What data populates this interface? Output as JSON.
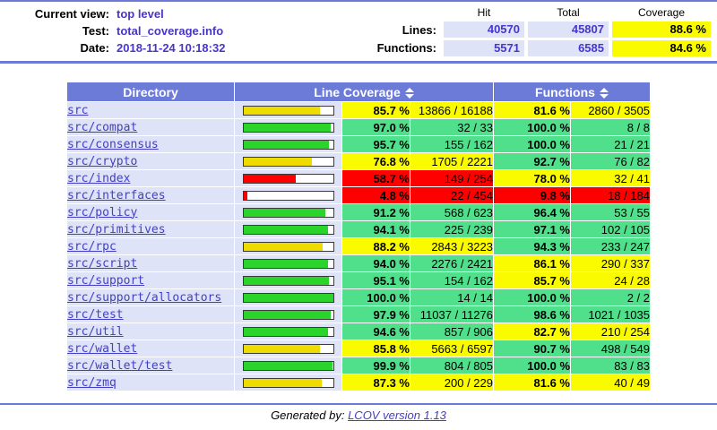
{
  "colors": {
    "accent_blue": "#6C7BD8",
    "cell_light_blue": "#DEE3F8",
    "high_green": "#50DF8A",
    "medium_yellow": "#FBFB00",
    "low_red": "#FF0000",
    "bar_green": "#2BD42B",
    "bar_yellow": "#EEDC00",
    "value_purple": "#4936C8",
    "link_blue": "#4340C4"
  },
  "header": {
    "fields": [
      {
        "label": "Current view:",
        "value": "top level"
      },
      {
        "label": "Test:",
        "value": "total_coverage.info"
      },
      {
        "label": "Date:",
        "value": "2018-11-24 10:18:32"
      }
    ],
    "summary": {
      "columns": [
        "Hit",
        "Total",
        "Coverage"
      ],
      "rows": [
        {
          "label": "Lines:",
          "hit": "40570",
          "total": "45807",
          "coverage": "88.6 %",
          "level": "med"
        },
        {
          "label": "Functions:",
          "hit": "5571",
          "total": "6585",
          "coverage": "84.6 %",
          "level": "med"
        }
      ]
    }
  },
  "table": {
    "header": {
      "directory": "Directory",
      "line_coverage": "Line Coverage",
      "functions": "Functions",
      "sort_icon": "sort-updown-icon"
    },
    "rows": [
      {
        "dir": "src",
        "line_pct": "85.7 %",
        "line_val": 85.7,
        "line_level": "med",
        "line_frac": "13866 / 16188",
        "func_pct": "81.6 %",
        "func_level": "med",
        "func_frac": "2860 / 3505"
      },
      {
        "dir": "src/compat",
        "line_pct": "97.0 %",
        "line_val": 97.0,
        "line_level": "hi",
        "line_frac": "32 / 33",
        "func_pct": "100.0 %",
        "func_level": "hi",
        "func_frac": "8 / 8"
      },
      {
        "dir": "src/consensus",
        "line_pct": "95.7 %",
        "line_val": 95.7,
        "line_level": "hi",
        "line_frac": "155 / 162",
        "func_pct": "100.0 %",
        "func_level": "hi",
        "func_frac": "21 / 21"
      },
      {
        "dir": "src/crypto",
        "line_pct": "76.8 %",
        "line_val": 76.8,
        "line_level": "med",
        "line_frac": "1705 / 2221",
        "func_pct": "92.7 %",
        "func_level": "hi",
        "func_frac": "76 / 82"
      },
      {
        "dir": "src/index",
        "line_pct": "58.7 %",
        "line_val": 58.7,
        "line_level": "lo",
        "line_frac": "149 / 254",
        "func_pct": "78.0 %",
        "func_level": "med",
        "func_frac": "32 / 41"
      },
      {
        "dir": "src/interfaces",
        "line_pct": "4.8 %",
        "line_val": 4.8,
        "line_level": "lo",
        "line_frac": "22 / 454",
        "func_pct": "9.8 %",
        "func_level": "lo",
        "func_frac": "18 / 184"
      },
      {
        "dir": "src/policy",
        "line_pct": "91.2 %",
        "line_val": 91.2,
        "line_level": "hi",
        "line_frac": "568 / 623",
        "func_pct": "96.4 %",
        "func_level": "hi",
        "func_frac": "53 / 55"
      },
      {
        "dir": "src/primitives",
        "line_pct": "94.1 %",
        "line_val": 94.1,
        "line_level": "hi",
        "line_frac": "225 / 239",
        "func_pct": "97.1 %",
        "func_level": "hi",
        "func_frac": "102 / 105"
      },
      {
        "dir": "src/rpc",
        "line_pct": "88.2 %",
        "line_val": 88.2,
        "line_level": "med",
        "line_frac": "2843 / 3223",
        "func_pct": "94.3 %",
        "func_level": "hi",
        "func_frac": "233 / 247"
      },
      {
        "dir": "src/script",
        "line_pct": "94.0 %",
        "line_val": 94.0,
        "line_level": "hi",
        "line_frac": "2276 / 2421",
        "func_pct": "86.1 %",
        "func_level": "med",
        "func_frac": "290 / 337"
      },
      {
        "dir": "src/support",
        "line_pct": "95.1 %",
        "line_val": 95.1,
        "line_level": "hi",
        "line_frac": "154 / 162",
        "func_pct": "85.7 %",
        "func_level": "med",
        "func_frac": "24 / 28"
      },
      {
        "dir": "src/support/allocators",
        "line_pct": "100.0 %",
        "line_val": 100.0,
        "line_level": "hi",
        "line_frac": "14 / 14",
        "func_pct": "100.0 %",
        "func_level": "hi",
        "func_frac": "2 / 2"
      },
      {
        "dir": "src/test",
        "line_pct": "97.9 %",
        "line_val": 97.9,
        "line_level": "hi",
        "line_frac": "11037 / 11276",
        "func_pct": "98.6 %",
        "func_level": "hi",
        "func_frac": "1021 / 1035"
      },
      {
        "dir": "src/util",
        "line_pct": "94.6 %",
        "line_val": 94.6,
        "line_level": "hi",
        "line_frac": "857 / 906",
        "func_pct": "82.7 %",
        "func_level": "med",
        "func_frac": "210 / 254"
      },
      {
        "dir": "src/wallet",
        "line_pct": "85.8 %",
        "line_val": 85.8,
        "line_level": "med",
        "line_frac": "5663 / 6597",
        "func_pct": "90.7 %",
        "func_level": "hi",
        "func_frac": "498 / 549"
      },
      {
        "dir": "src/wallet/test",
        "line_pct": "99.9 %",
        "line_val": 99.9,
        "line_level": "hi",
        "line_frac": "804 / 805",
        "func_pct": "100.0 %",
        "func_level": "hi",
        "func_frac": "83 / 83"
      },
      {
        "dir": "src/zmq",
        "line_pct": "87.3 %",
        "line_val": 87.3,
        "line_level": "med",
        "line_frac": "200 / 229",
        "func_pct": "81.6 %",
        "func_level": "med",
        "func_frac": "40 / 49"
      }
    ]
  },
  "footer": {
    "prefix": "Generated by:",
    "link_label": "LCOV version 1.13"
  }
}
